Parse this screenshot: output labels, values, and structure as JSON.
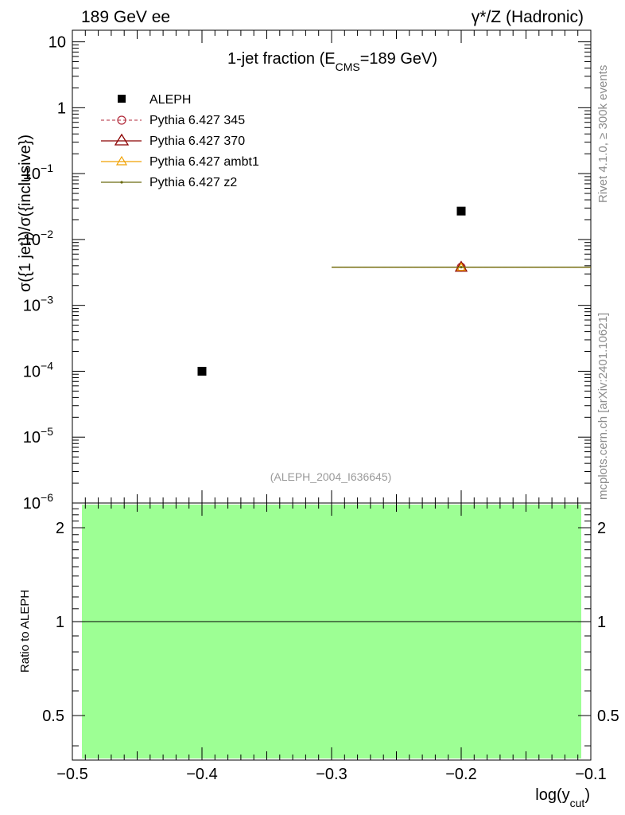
{
  "header": {
    "left": "189 GeV ee",
    "right": "γ*/Z (Hadronic)"
  },
  "side_labels": {
    "top": "Rivet 4.1.0, ≥ 300k events",
    "bottom": "mcplots.cern.ch [arXiv:2401.10621]"
  },
  "chart_data": [
    {
      "type": "scatter",
      "panel": "main",
      "title": "1-jet fraction (E",
      "title_sub": "CMS",
      "title_end": "=189 GeV)",
      "ylabel": "σ({1 jet})/σ({inclusive})",
      "yscale": "log",
      "ylim": [
        1e-06,
        15
      ],
      "xlim": [
        -0.5,
        -0.1
      ],
      "y_ticks": [
        {
          "value": 10,
          "label": "10"
        },
        {
          "value": 1,
          "label": "1"
        },
        {
          "value": 0.1,
          "base": "10",
          "exp": "−1"
        },
        {
          "value": 0.01,
          "base": "10",
          "exp": "−2"
        },
        {
          "value": 0.001,
          "base": "10",
          "exp": "−3"
        },
        {
          "value": 0.0001,
          "base": "10",
          "exp": "−4"
        },
        {
          "value": 1e-05,
          "base": "10",
          "exp": "−5"
        },
        {
          "value": 1e-06,
          "base": "10",
          "exp": "−6"
        }
      ],
      "watermark": "(ALEPH_2004_I636645)",
      "legend_position": "top-left",
      "series": [
        {
          "name": "ALEPH",
          "style": "data",
          "color": "#000000",
          "x": [
            -0.4,
            -0.2
          ],
          "y": [
            0.0001,
            0.027
          ]
        },
        {
          "name": "Pythia 6.427 345",
          "style": "dashed-open-circle",
          "color": "#b22a3a",
          "x": [
            -0.2
          ],
          "y": [
            0.0038
          ],
          "xerr": [
            [
              -0.3,
              -0.1
            ]
          ]
        },
        {
          "name": "Pythia 6.427 370",
          "style": "solid-open-triangle",
          "color": "#8b0000",
          "x": [
            -0.2
          ],
          "y": [
            0.0038
          ],
          "xerr": [
            [
              -0.3,
              -0.1
            ]
          ]
        },
        {
          "name": "Pythia 6.427 ambt1",
          "style": "solid-open-triangle-small",
          "color": "#f0a000",
          "x": [
            -0.2
          ],
          "y": [
            0.0038
          ],
          "xerr": [
            [
              -0.3,
              -0.1
            ]
          ]
        },
        {
          "name": "Pythia 6.427 z2",
          "style": "solid-dot",
          "color": "#6b6b10",
          "x": [
            -0.2
          ],
          "y": [
            0.0038
          ],
          "xerr": [
            [
              -0.3,
              -0.1
            ]
          ]
        }
      ]
    },
    {
      "type": "line",
      "panel": "ratio",
      "ylabel": "Ratio to ALEPH",
      "xlabel": "log(y",
      "xlabel_sub": "cut",
      "xlabel_end": ")",
      "yscale": "log",
      "ylim": [
        0.36,
        2.4
      ],
      "xlim": [
        -0.5,
        -0.1
      ],
      "y_ticks": [
        {
          "value": 2,
          "label": "2"
        },
        {
          "value": 1,
          "label": "1"
        },
        {
          "value": 0.5,
          "label": "0.5"
        }
      ],
      "x_ticks": [
        {
          "value": -0.5,
          "label": "−0.5"
        },
        {
          "value": -0.4,
          "label": "−0.4"
        },
        {
          "value": -0.3,
          "label": "−0.3"
        },
        {
          "value": -0.2,
          "label": "−0.2"
        },
        {
          "value": -0.1,
          "label": "−0.1"
        }
      ],
      "band": {
        "x": [
          -0.5,
          -0.1
        ],
        "y": [
          0.36,
          2.4
        ],
        "color": "#9dff94"
      },
      "reference_line": {
        "y": 1,
        "color": "#000000"
      }
    }
  ]
}
